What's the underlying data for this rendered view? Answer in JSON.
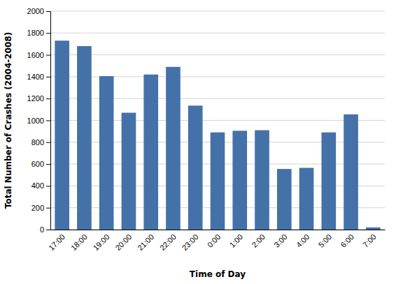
{
  "chart_data": {
    "type": "bar",
    "categories": [
      "17:00",
      "18:00",
      "19:00",
      "20:00",
      "21:00",
      "22:00",
      "23:00",
      "0:00",
      "1:00",
      "2:00",
      "3:00",
      "4:00",
      "5:00",
      "6:00",
      "7:00"
    ],
    "values": [
      1730,
      1680,
      1405,
      1070,
      1420,
      1490,
      1135,
      890,
      905,
      910,
      555,
      565,
      890,
      1055,
      20
    ],
    "color": "#4472a8",
    "xlabel": "Time of Day",
    "ylabel": "Total Number of Crashes (2004-2008)",
    "ylim": [
      0,
      2000
    ],
    "yticks": [
      0,
      200,
      400,
      600,
      800,
      1000,
      1200,
      1400,
      1600,
      1800,
      2000
    ],
    "grid": true
  }
}
